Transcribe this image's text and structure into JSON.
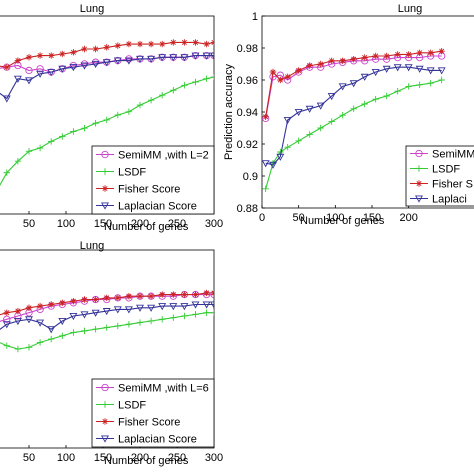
{
  "chart_data": [
    {
      "type": "line",
      "title": "Lung",
      "xlabel": "Number of genes",
      "ylabel": "",
      "xlim": [
        0,
        300
      ],
      "ylim": [
        0.88,
        1.0
      ],
      "xticks": [
        "50",
        "100",
        "150",
        "200",
        "250",
        "300"
      ],
      "yticks": [],
      "legend_position": "bottom-right",
      "series": [
        {
          "name": "SemiMM ,with L=2",
          "color": "#cc44cc",
          "marker": "circle",
          "x": [
            5,
            20,
            35,
            50,
            65,
            80,
            95,
            110,
            125,
            140,
            155,
            170,
            185,
            200,
            215,
            230,
            245,
            260,
            275,
            290,
            300
          ],
          "y": [
            0.968,
            0.969,
            0.97,
            0.967,
            0.968,
            0.966,
            0.968,
            0.97,
            0.971,
            0.972,
            0.972,
            0.973,
            0.974,
            0.974,
            0.974,
            0.975,
            0.975,
            0.975,
            0.976,
            0.976,
            0.976
          ]
        },
        {
          "name": "LSDF",
          "color": "#33cc33",
          "marker": "plus",
          "x": [
            5,
            20,
            35,
            50,
            65,
            80,
            95,
            110,
            125,
            140,
            155,
            170,
            185,
            200,
            215,
            230,
            245,
            260,
            275,
            290,
            300
          ],
          "y": [
            0.893,
            0.905,
            0.912,
            0.918,
            0.92,
            0.924,
            0.927,
            0.93,
            0.932,
            0.935,
            0.937,
            0.94,
            0.942,
            0.946,
            0.949,
            0.952,
            0.955,
            0.958,
            0.96,
            0.962,
            0.963
          ]
        },
        {
          "name": "Fisher Score",
          "color": "#cc2222",
          "marker": "star",
          "x": [
            5,
            20,
            35,
            50,
            65,
            80,
            95,
            110,
            125,
            140,
            155,
            170,
            185,
            200,
            215,
            230,
            245,
            260,
            275,
            290,
            300
          ],
          "y": [
            0.97,
            0.969,
            0.973,
            0.975,
            0.976,
            0.976,
            0.977,
            0.978,
            0.98,
            0.98,
            0.981,
            0.982,
            0.983,
            0.983,
            0.983,
            0.983,
            0.984,
            0.984,
            0.984,
            0.983,
            0.984
          ]
        },
        {
          "name": "Laplacian Score",
          "color": "#333399",
          "marker": "triangle-down",
          "x": [
            5,
            20,
            35,
            50,
            65,
            80,
            95,
            110,
            125,
            140,
            155,
            170,
            185,
            200,
            215,
            230,
            245,
            260,
            275,
            290,
            300
          ],
          "y": [
            0.955,
            0.95,
            0.962,
            0.961,
            0.965,
            0.966,
            0.968,
            0.969,
            0.97,
            0.971,
            0.972,
            0.973,
            0.973,
            0.974,
            0.974,
            0.975,
            0.975,
            0.975,
            0.976,
            0.976,
            0.976
          ]
        }
      ]
    },
    {
      "type": "line",
      "title": "Lung",
      "xlabel": "Number of genes",
      "ylabel": "Prediction accuracy",
      "xlim": [
        0,
        300
      ],
      "ylim": [
        0.88,
        1.0
      ],
      "xticks": [
        "0",
        "50",
        "100",
        "150",
        "200"
      ],
      "yticks": [
        "0.88",
        "0.9",
        "0.92",
        "0.94",
        "0.96",
        "0.98",
        "1"
      ],
      "legend_position": "bottom-right",
      "series": [
        {
          "name": "SemiMM",
          "color": "#cc44cc",
          "marker": "circle",
          "x": [
            5,
            15,
            25,
            35,
            50,
            65,
            80,
            95,
            110,
            125,
            140,
            155,
            170,
            185,
            200,
            215,
            230,
            245
          ],
          "y": [
            0.936,
            0.962,
            0.963,
            0.96,
            0.965,
            0.968,
            0.968,
            0.97,
            0.971,
            0.972,
            0.972,
            0.973,
            0.973,
            0.974,
            0.974,
            0.974,
            0.975,
            0.975
          ]
        },
        {
          "name": "LSDF",
          "color": "#33cc33",
          "marker": "plus",
          "x": [
            5,
            15,
            25,
            35,
            50,
            65,
            80,
            95,
            110,
            125,
            140,
            155,
            170,
            185,
            200,
            215,
            230,
            245
          ],
          "y": [
            0.892,
            0.908,
            0.915,
            0.918,
            0.922,
            0.926,
            0.93,
            0.934,
            0.938,
            0.942,
            0.945,
            0.948,
            0.95,
            0.953,
            0.956,
            0.957,
            0.958,
            0.96
          ]
        },
        {
          "name": "Fisher S",
          "color": "#cc2222",
          "marker": "star",
          "x": [
            5,
            15,
            25,
            35,
            50,
            65,
            80,
            95,
            110,
            125,
            140,
            155,
            170,
            185,
            200,
            215,
            230,
            245
          ],
          "y": [
            0.937,
            0.965,
            0.96,
            0.962,
            0.966,
            0.969,
            0.97,
            0.972,
            0.972,
            0.973,
            0.974,
            0.975,
            0.975,
            0.976,
            0.976,
            0.977,
            0.977,
            0.978
          ]
        },
        {
          "name": "Laplaci",
          "color": "#333399",
          "marker": "triangle-down",
          "x": [
            5,
            15,
            25,
            35,
            50,
            65,
            80,
            95,
            110,
            125,
            140,
            155,
            170,
            185,
            200,
            215,
            230,
            245
          ],
          "y": [
            0.908,
            0.907,
            0.912,
            0.935,
            0.94,
            0.942,
            0.944,
            0.95,
            0.956,
            0.958,
            0.962,
            0.965,
            0.967,
            0.968,
            0.968,
            0.967,
            0.966,
            0.966
          ]
        }
      ]
    },
    {
      "type": "line",
      "title": "Lung",
      "xlabel": "Number of genes",
      "ylabel": "",
      "xlim": [
        0,
        300
      ],
      "ylim": [
        0.88,
        1.0
      ],
      "xticks": [
        "50",
        "100",
        "150",
        "200",
        "250",
        "300"
      ],
      "yticks": [],
      "legend_position": "bottom-right",
      "series": [
        {
          "name": "SemiMM ,with L=6",
          "color": "#cc44cc",
          "marker": "circle",
          "x": [
            5,
            20,
            35,
            50,
            65,
            80,
            95,
            110,
            125,
            140,
            155,
            170,
            185,
            200,
            215,
            230,
            245,
            260,
            275,
            290,
            300
          ],
          "y": [
            0.956,
            0.958,
            0.96,
            0.962,
            0.964,
            0.966,
            0.967,
            0.968,
            0.969,
            0.97,
            0.97,
            0.971,
            0.971,
            0.972,
            0.972,
            0.972,
            0.972,
            0.973,
            0.973,
            0.973,
            0.973
          ]
        },
        {
          "name": "LSDF",
          "color": "#33cc33",
          "marker": "plus",
          "x": [
            5,
            20,
            35,
            50,
            65,
            80,
            95,
            110,
            125,
            140,
            155,
            170,
            185,
            200,
            215,
            230,
            245,
            260,
            275,
            290,
            300
          ],
          "y": [
            0.945,
            0.942,
            0.94,
            0.941,
            0.944,
            0.946,
            0.948,
            0.95,
            0.951,
            0.952,
            0.953,
            0.954,
            0.955,
            0.956,
            0.957,
            0.958,
            0.959,
            0.96,
            0.961,
            0.962,
            0.962
          ]
        },
        {
          "name": "Fisher Score",
          "color": "#cc2222",
          "marker": "star",
          "x": [
            5,
            20,
            35,
            50,
            65,
            80,
            95,
            110,
            125,
            140,
            155,
            170,
            185,
            200,
            215,
            230,
            245,
            260,
            275,
            290,
            300
          ],
          "y": [
            0.96,
            0.962,
            0.963,
            0.965,
            0.966,
            0.967,
            0.968,
            0.969,
            0.97,
            0.97,
            0.971,
            0.971,
            0.972,
            0.972,
            0.972,
            0.973,
            0.973,
            0.973,
            0.973,
            0.974,
            0.974
          ]
        },
        {
          "name": "Laplacian Score",
          "color": "#333399",
          "marker": "triangle-down",
          "x": [
            5,
            20,
            35,
            50,
            65,
            80,
            95,
            110,
            125,
            140,
            155,
            170,
            185,
            200,
            215,
            230,
            245,
            260,
            275,
            290,
            300
          ],
          "y": [
            0.95,
            0.955,
            0.957,
            0.958,
            0.956,
            0.952,
            0.957,
            0.96,
            0.961,
            0.962,
            0.963,
            0.964,
            0.964,
            0.965,
            0.965,
            0.966,
            0.966,
            0.966,
            0.967,
            0.967,
            0.967
          ]
        }
      ]
    }
  ]
}
